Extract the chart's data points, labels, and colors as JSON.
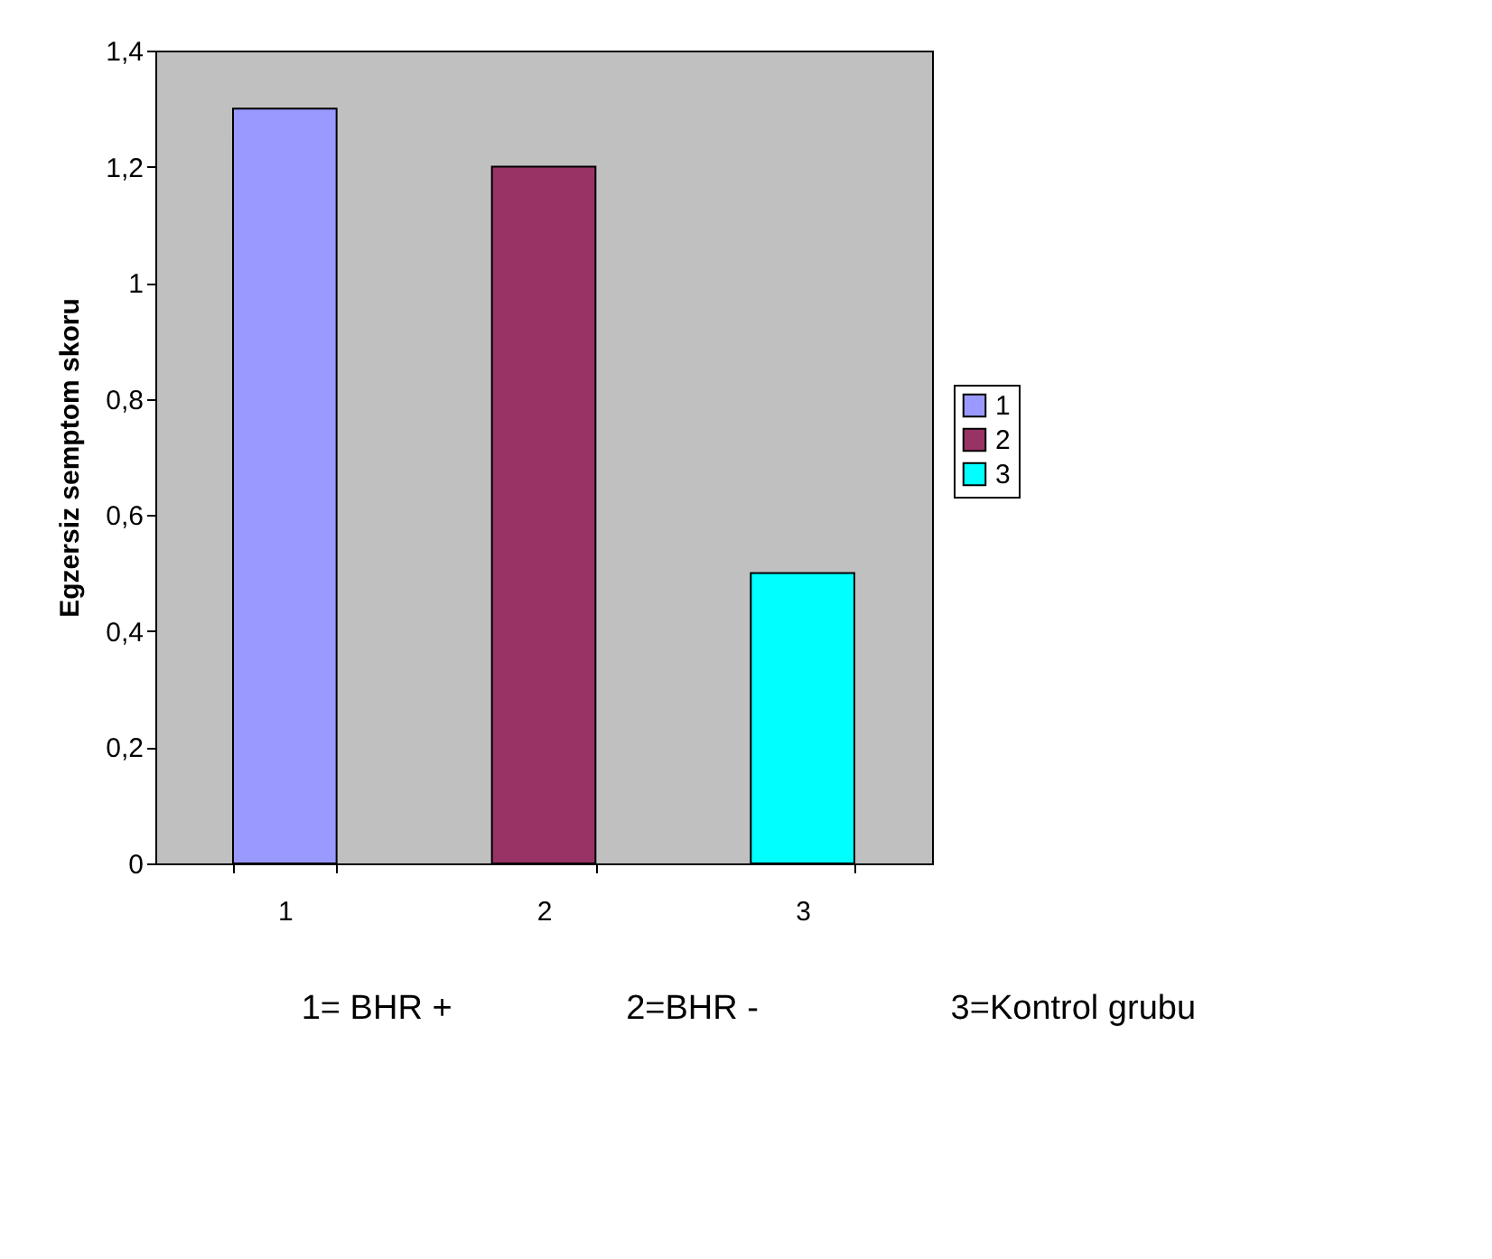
{
  "chart_data": {
    "type": "bar",
    "ylabel": "Egzersiz semptom skoru",
    "categories": [
      "1",
      "2",
      "3"
    ],
    "stacked": true,
    "series": [
      {
        "name": "1",
        "color": "#9999ff",
        "values": [
          1.3,
          null,
          null
        ]
      },
      {
        "name": "2",
        "color": "#993366",
        "values": [
          null,
          1.2,
          null
        ]
      },
      {
        "name": "3",
        "color": "#00ffff",
        "values": [
          null,
          null,
          0.5
        ]
      }
    ],
    "ylim": [
      0,
      1.4
    ],
    "yticks": [
      0,
      {
        "value": 0.2,
        "label": "0,2"
      },
      {
        "value": 0.4,
        "label": "0,4"
      },
      {
        "value": 0.6,
        "label": "0,6"
      },
      {
        "value": 0.8,
        "label": "0,8"
      },
      1,
      {
        "value": 1.2,
        "label": "1,2"
      },
      {
        "value": 1.4,
        "label": "1,4"
      }
    ],
    "grid": false,
    "legend": "right",
    "annotations": [
      "1= BHR +",
      "2=BHR -",
      "3=Kontrol grubu"
    ]
  }
}
